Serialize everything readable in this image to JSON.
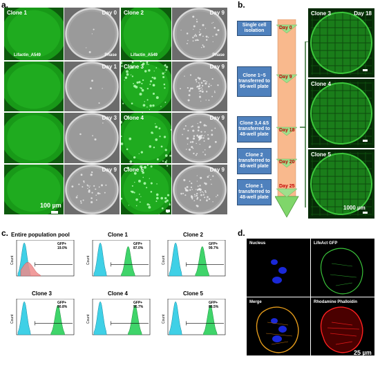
{
  "panel_a": {
    "letter": "a.",
    "rows": [
      {
        "clone": "Clone 1",
        "day_fluor": "",
        "day_phase": "Day 0",
        "sub_left": "Lifactin_A549",
        "sub_right": "Phase"
      },
      {
        "clone": "",
        "day_fluor": "",
        "day_phase": "Day 1",
        "sub_left": "",
        "sub_right": ""
      },
      {
        "clone": "",
        "day_fluor": "",
        "day_phase": "Day 3",
        "sub_left": "",
        "sub_right": ""
      },
      {
        "clone": "",
        "day_fluor": "",
        "day_phase": "Day 9",
        "sub_left": "",
        "sub_right": ""
      }
    ],
    "right_rows": [
      {
        "clone": "Clone 2",
        "day_phase": "Day 9",
        "sub_left": "Lifactin_A549",
        "sub_right": "Phase"
      },
      {
        "clone": "Clone 3",
        "day_phase": "Day 9",
        "sub_left": "",
        "sub_right": ""
      },
      {
        "clone": "Clone 4",
        "day_phase": "Day 9",
        "sub_left": "",
        "sub_right": ""
      },
      {
        "clone": "Clone 5",
        "day_phase": "Day 9",
        "sub_left": "",
        "sub_right": ""
      }
    ],
    "scale_label": "100 µm"
  },
  "panel_b": {
    "letter": "b.",
    "steps": [
      {
        "text": "Single cell isolation",
        "day": "Day 0"
      },
      {
        "text": "Clone 1~5 transferred to 96-well plate",
        "day": "Day 9"
      },
      {
        "text": "Clone 3,4 &5 transferred to 48-well plate",
        "day": "Day 18"
      },
      {
        "text": "Clone 2 transferred to 48-well plate",
        "day": "Day 20"
      },
      {
        "text": "Clone 1 transferred to 48-well plate",
        "day": "Day 25"
      }
    ],
    "images": [
      {
        "clone": "Clone 3",
        "day": "Day 18"
      },
      {
        "clone": "Clone 4",
        "day": ""
      },
      {
        "clone": "Clone 5",
        "day": ""
      }
    ],
    "scale_label": "1000 µm"
  },
  "panel_c": {
    "letter": "c.",
    "axis_count_label": "Count",
    "histograms": [
      {
        "title": "Entire population pool",
        "gfp_label": "GFP+",
        "gfp_value": "19.0%"
      },
      {
        "title": "Clone 1",
        "gfp_label": "GFP+",
        "gfp_value": "87.0%"
      },
      {
        "title": "Clone 2",
        "gfp_label": "GFP+",
        "gfp_value": "99.7%"
      },
      {
        "title": "Clone 3",
        "gfp_label": "GFP+",
        "gfp_value": "90.8%"
      },
      {
        "title": "Clone 4",
        "gfp_label": "GFP+",
        "gfp_value": "95.7%"
      },
      {
        "title": "Clone 5",
        "gfp_label": "GFP+",
        "gfp_value": "88.5%"
      }
    ]
  },
  "panel_d": {
    "letter": "d.",
    "quadrants": [
      "Nucleus",
      "LifeAct GFP",
      "Merge",
      "Rhodamine Phalloidin"
    ],
    "scale_label": "25 µm"
  },
  "colors": {
    "fluor_green": "#1fa81f",
    "phase_gray": "#8a8a8a",
    "flow_box": "#4f81bd",
    "day_red": "#c00000",
    "arrow_fill": "#f9b98d",
    "hist_blue": "#3fd0e6",
    "hist_green": "#3fd46a",
    "hist_red": "#ef8b8b"
  }
}
